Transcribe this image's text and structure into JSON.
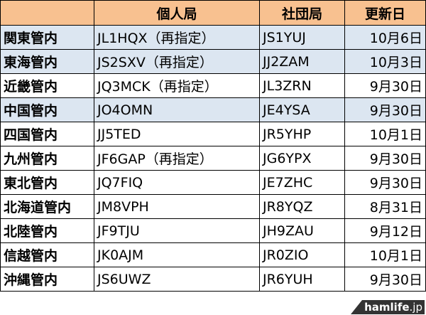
{
  "headers": [
    "",
    "個人局",
    "社団局",
    "更新日"
  ],
  "rows": [
    {
      "region": "関東管内",
      "personal": "JL1HQX（再指定）",
      "club": "JS1YUJ",
      "date": "10月6日",
      "highlight": true
    },
    {
      "region": "東海管内",
      "personal": "JS2SXV（再指定）",
      "club": "JJ2ZAM",
      "date": "10月3日",
      "highlight": true
    },
    {
      "region": "近畿管内",
      "personal": "JQ3MCK（再指定）",
      "club": "JL3ZRN",
      "date": "9月30日",
      "highlight": false
    },
    {
      "region": "中国管内",
      "personal": "JO4OMN",
      "club": "JE4YSA",
      "date": "9月30日",
      "highlight": true
    },
    {
      "region": "四国管内",
      "personal": "JJ5TED",
      "club": "JR5YHP",
      "date": "10月1日",
      "highlight": false
    },
    {
      "region": "九州管内",
      "personal": "JF6GAP（再指定）",
      "club": "JG6YPX",
      "date": "9月30日",
      "highlight": false
    },
    {
      "region": "東北管内",
      "personal": "JQ7FIQ",
      "club": "JE7ZHC",
      "date": "9月30日",
      "highlight": false
    },
    {
      "region": "北海道管内",
      "personal": "JM8VPH",
      "club": "JR8YQZ",
      "date": "8月31日",
      "highlight": false
    },
    {
      "region": "北陸管内",
      "personal": "JF9TJU",
      "club": "JH9ZAU",
      "date": "9月12日",
      "highlight": false
    },
    {
      "region": "信越管内",
      "personal": "JK0AJM",
      "club": "JR0ZIO",
      "date": "10月1日",
      "highlight": false
    },
    {
      "region": "沖縄管内",
      "personal": "JS6UWZ",
      "club": "JR6YUH",
      "date": "9月30日",
      "highlight": false
    }
  ],
  "watermark": {
    "main": "hamlife",
    "suffix": ".jp"
  },
  "colors": {
    "header": "#F8C190",
    "highlight": "#DCE6F1"
  }
}
